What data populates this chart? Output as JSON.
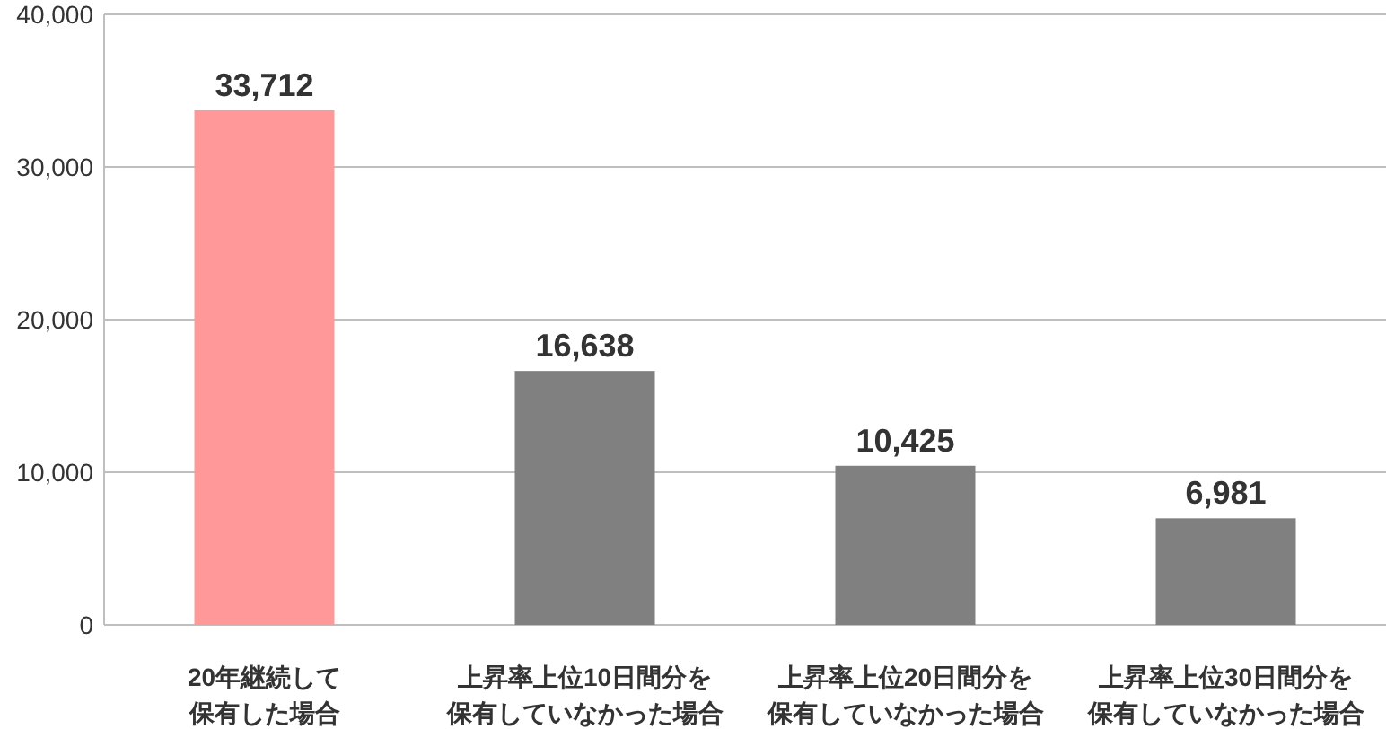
{
  "chart_data": {
    "type": "bar",
    "categories": [
      "20年継続して保有した場合",
      "上昇率上位10日間分を保有していなかった場合",
      "上昇率上位20日間分を保有していなかった場合",
      "上昇率上位30日間分を保有していなかった場合"
    ],
    "values": [
      33712,
      16638,
      10425,
      6981
    ],
    "value_labels": [
      "33,712",
      "16,638",
      "10,425",
      "6,981"
    ],
    "colors": [
      "#ff9999",
      "#808080",
      "#808080",
      "#808080"
    ],
    "ylim": [
      0,
      40000
    ],
    "yticks": [
      0,
      {
        "value": 10000,
        "label": "10,000"
      },
      {
        "value": 20000,
        "label": "20,000"
      },
      {
        "value": 30000,
        "label": "30,000"
      },
      {
        "value": 40000,
        "label": "40,000"
      }
    ],
    "grid": "y"
  }
}
